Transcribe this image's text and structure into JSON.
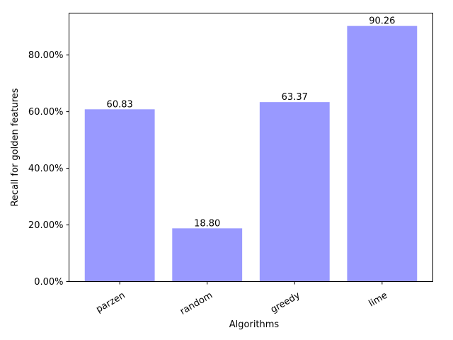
{
  "chart_data": {
    "type": "bar",
    "categories": [
      "parzen",
      "random",
      "greedy",
      "lime"
    ],
    "values": [
      60.83,
      18.8,
      63.37,
      90.26
    ],
    "data_labels": [
      "60.83",
      "18.80",
      "63.37",
      "90.26"
    ],
    "xlabel": "Algorithms",
    "ylabel": "Recall for golden features",
    "ylim": [
      0,
      94.8
    ],
    "yticks": [
      0,
      20,
      40,
      60,
      80
    ],
    "ytick_labels": [
      "0.00%",
      "20.00%",
      "40.00%",
      "60.00%",
      "80.00%"
    ],
    "xtick_rotation": 30,
    "bar_color": "#9999ff",
    "grid": false,
    "legend": "none"
  }
}
